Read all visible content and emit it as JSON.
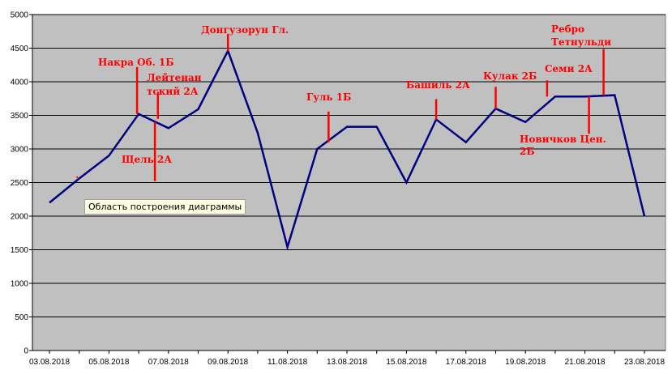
{
  "tooltip": "Область построения диаграммы",
  "chart_data": {
    "type": "line",
    "title": "",
    "xlabel": "",
    "ylabel": "",
    "ylim": [
      0,
      5000
    ],
    "yticks": [
      0,
      500,
      1000,
      1500,
      2000,
      2500,
      3000,
      3500,
      4000,
      4500,
      5000
    ],
    "x_tick_labels": [
      "03.08.2018",
      "05.08.2018",
      "07.08.2018",
      "09.08.2018",
      "11.08.2018",
      "13.08.2018",
      "15.08.2018",
      "17.08.2018",
      "19.08.2018",
      "21.08.2018",
      "23.08.2018"
    ],
    "grid": "horizontal",
    "plot_background": "#c0c0c0",
    "line_color": "#000080",
    "annotation_color": "#ff0000",
    "series": [
      {
        "values": [
          {
            "x": "03.08.2018",
            "y": 2200
          },
          {
            "x": "04.08.2018",
            "y": 2560
          },
          {
            "x": "05.08.2018",
            "y": 2900
          },
          {
            "x": "06.08.2018",
            "y": 3520
          },
          {
            "x": "07.08.2018",
            "y": 3310
          },
          {
            "x": "08.08.2018",
            "y": 3590
          },
          {
            "x": "09.08.2018",
            "y": 4460
          },
          {
            "x": "10.08.2018",
            "y": 3240
          },
          {
            "x": "11.08.2018",
            "y": 1540
          },
          {
            "x": "12.08.2018",
            "y": 3000
          },
          {
            "x": "13.08.2018",
            "y": 3330
          },
          {
            "x": "14.08.2018",
            "y": 3330
          },
          {
            "x": "15.08.2018",
            "y": 2500
          },
          {
            "x": "16.08.2018",
            "y": 3440
          },
          {
            "x": "17.08.2018",
            "y": 3100
          },
          {
            "x": "18.08.2018",
            "y": 3600
          },
          {
            "x": "19.08.2018",
            "y": 3400
          },
          {
            "x": "20.08.2018",
            "y": 3780
          },
          {
            "x": "21.08.2018",
            "y": 3780
          },
          {
            "x": "22.08.2018",
            "y": 3800
          },
          {
            "x": "23.08.2018",
            "y": 2000
          }
        ]
      }
    ],
    "annotations": [
      {
        "text": "Накра Об. 1Б",
        "x": "06.08.2018",
        "y": 3520
      },
      {
        "text": "Щель 2А",
        "x": "06.08.2018",
        "y": 3400
      },
      {
        "text": "Лейтенантский 2А",
        "x": "07.08.2018",
        "y": 3450
      },
      {
        "text": "Донгузорун Гл.",
        "x": "09.08.2018",
        "y": 4460
      },
      {
        "text": "Гуль 1Б",
        "x": "12.08.2018",
        "y": 3100
      },
      {
        "text": "Башиль 2А",
        "x": "16.08.2018",
        "y": 3440
      },
      {
        "text": "Кулак 2Б",
        "x": "18.08.2018",
        "y": 3600
      },
      {
        "text": "Семи 2А",
        "x": "20.08.2018",
        "y": 3780
      },
      {
        "text": "Новичков Цен. 2Б",
        "x": "21.08.2018",
        "y": 3780
      },
      {
        "text": "Ребро Тетнульди",
        "x": "21.08.2018",
        "y": 3800
      }
    ]
  }
}
